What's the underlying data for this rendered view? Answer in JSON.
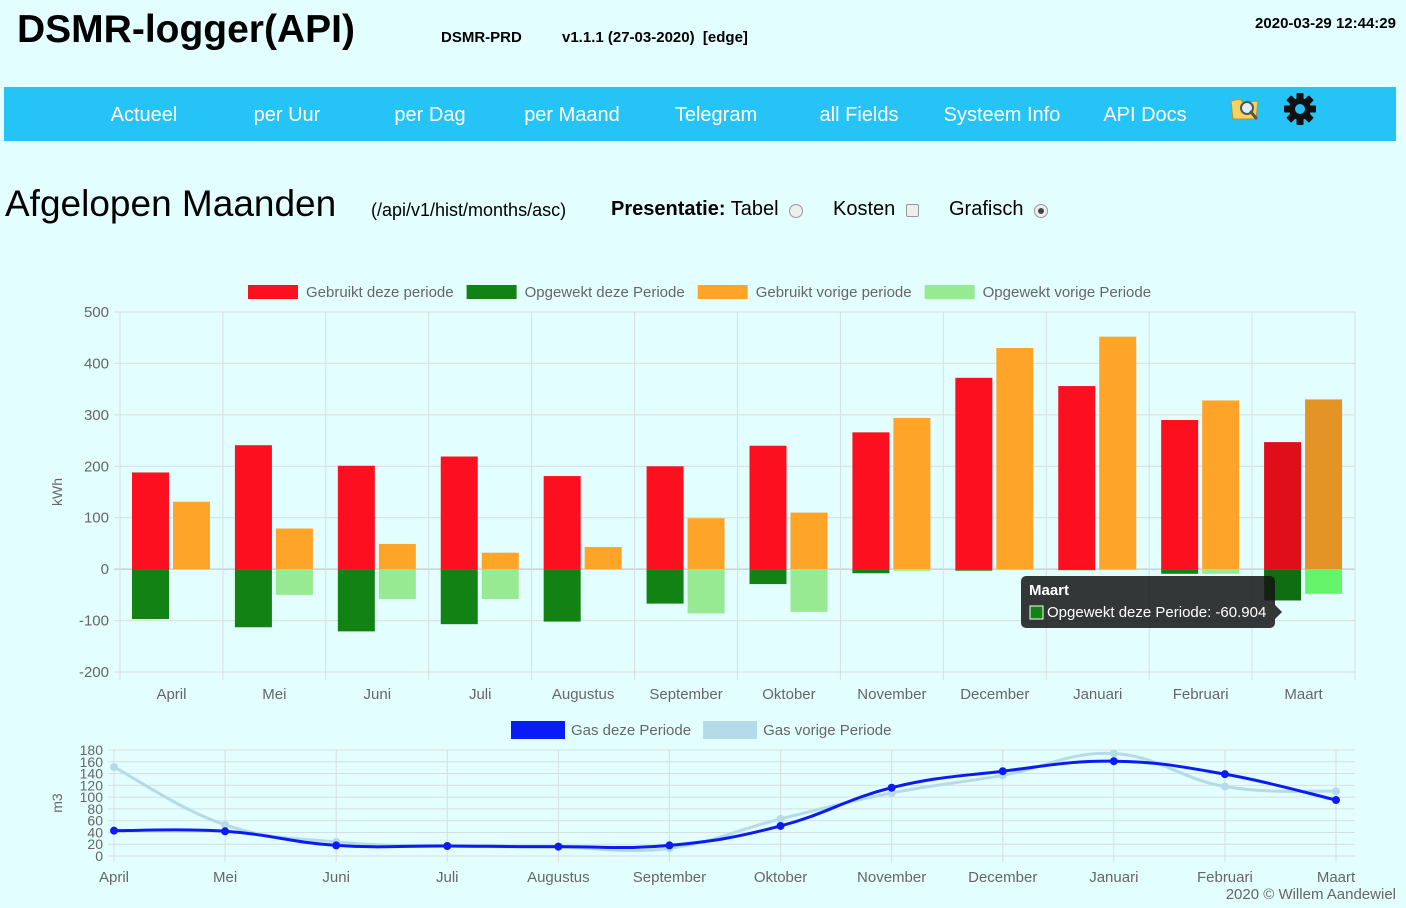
{
  "header": {
    "title": "DSMR-logger(API)",
    "hostname": "DSMR-PRD",
    "version": "v1.1.1 (27-03-2020)  [edge]",
    "datetime": "2020-03-29 12:44:29"
  },
  "nav": {
    "items": [
      "Actueel",
      "per Uur",
      "per Dag",
      "per Maand",
      "Telegram",
      "all Fields",
      "Systeem Info",
      "API Docs"
    ],
    "icons": [
      "fs-explorer-icon",
      "settings-gear-icon"
    ]
  },
  "page": {
    "title": "Afgelopen Maanden",
    "api_path": "(/api/v1/hist/months/asc)",
    "presentation_label": "Presentatie:",
    "options": {
      "tabel": {
        "label": "Tabel",
        "selected": false
      },
      "kosten": {
        "label": "Kosten",
        "checked": false
      },
      "grafisch": {
        "label": "Grafisch",
        "selected": true
      }
    }
  },
  "colors": {
    "nav_bg": "#25c3f6",
    "page_bg": "#e3fefe",
    "used_current": "#fc0f1f",
    "delivered_current": "#118213",
    "used_previous": "#fea429",
    "delivered_previous": "#97ea92",
    "gas_current": "#0a1cf5",
    "gas_previous": "#b5dbe8"
  },
  "chart_data": [
    {
      "type": "bar",
      "categories": [
        "April",
        "Mei",
        "Juni",
        "Juli",
        "Augustus",
        "September",
        "Oktober",
        "November",
        "December",
        "Januari",
        "Februari",
        "Maart"
      ],
      "ylabel": "kWh",
      "ylim": [
        -200,
        500
      ],
      "yticks": [
        500,
        400,
        300,
        200,
        100,
        0,
        -100,
        -200
      ],
      "legend_position": "top",
      "grid": true,
      "series": [
        {
          "name": "Gebruikt deze periode",
          "color": "#fc0f1f",
          "values": [
            188,
            241,
            201,
            219,
            181,
            200,
            240,
            266,
            372,
            356,
            290,
            247
          ]
        },
        {
          "name": "Opgewekt deze Periode",
          "color": "#118213",
          "values": [
            -97,
            -113,
            -121,
            -107,
            -102,
            -67,
            -29,
            -8,
            -3,
            -2,
            -9,
            -60.904
          ]
        },
        {
          "name": "Gebruikt vorige periode",
          "color": "#fea429",
          "values": [
            131,
            79,
            49,
            32,
            43,
            99,
            110,
            294,
            430,
            452,
            328,
            330
          ]
        },
        {
          "name": "Opgewekt vorige Periode",
          "color": "#97ea92",
          "values": [
            0,
            -50,
            -58,
            -58,
            0,
            -86,
            -83,
            -3,
            -2,
            -1,
            -9,
            -48
          ]
        }
      ],
      "tooltip": {
        "title": "Maart",
        "label": "Opgewekt deze Periode: -60.904"
      }
    },
    {
      "type": "line",
      "categories": [
        "April",
        "Mei",
        "Juni",
        "Juli",
        "Augustus",
        "September",
        "Oktober",
        "November",
        "December",
        "Januari",
        "Februari",
        "Maart"
      ],
      "ylabel": "m3",
      "ylim": [
        0,
        180
      ],
      "yticks": [
        180,
        160,
        140,
        120,
        100,
        80,
        60,
        40,
        20,
        0
      ],
      "legend_position": "top",
      "grid": true,
      "series": [
        {
          "name": "Gas deze Periode",
          "color": "#0a1cf5",
          "values": [
            43,
            42,
            18,
            17,
            16,
            18,
            51,
            116,
            144,
            161,
            139,
            95
          ]
        },
        {
          "name": "Gas vorige Periode",
          "color": "#b5dbe8",
          "values": [
            151,
            53,
            24,
            17,
            15,
            13,
            63,
            107,
            137,
            174,
            118,
            110
          ]
        }
      ]
    }
  ],
  "footer": {
    "text": "2020 © Willem Aandewiel"
  }
}
